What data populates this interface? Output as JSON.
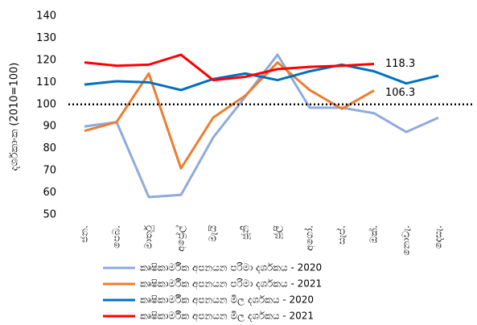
{
  "chart_data": {
    "type": "line",
    "y_label": "දර්ශකාංක (2010=100)",
    "categories": [
      "ජන.",
      "පෙබ.",
      "මාර්තු",
      "අප්‍රේල්",
      "මැයි",
      "ජූනි",
      "ජූලි",
      "අගෝ.",
      "සැප්.",
      "ඔක්.",
      "නොවැ.",
      "දෙසැ."
    ],
    "series": [
      {
        "name": "කෘෂිකාර්මික අපනයන පරිමා දර්ශකය - 2020",
        "color": "#8faadc",
        "values": [
          90,
          92,
          58,
          59,
          85,
          103.5,
          122.5,
          98.5,
          98.5,
          96,
          87.5,
          94
        ]
      },
      {
        "name": "කෘෂිකාර්මික අපනයන පරිමා දර්ශකය - 2021",
        "color": "#ed7d31",
        "values": [
          88,
          92,
          114,
          71,
          94,
          104,
          119,
          106.5,
          98,
          106.3,
          null,
          null
        ]
      },
      {
        "name": "කෘෂිකාර්මික අපනයන මිල දර්ශකය - 2020",
        "color": "#0070c0",
        "values": [
          109,
          110.5,
          110,
          106.5,
          111.5,
          114,
          111,
          115,
          118,
          115,
          109.5,
          113
        ]
      },
      {
        "name": "කෘෂිකාර්මික අපනයන මිල දර්ශකය - 2021",
        "color": "#ff0000",
        "values": [
          119,
          117.5,
          118,
          122.5,
          111,
          112.5,
          116,
          117,
          117.5,
          118.3,
          null,
          null
        ]
      }
    ],
    "reference_line": 100,
    "ylim": [
      50,
      140
    ],
    "yticks": [
      50,
      60,
      70,
      80,
      90,
      100,
      110,
      120,
      130,
      140
    ]
  }
}
